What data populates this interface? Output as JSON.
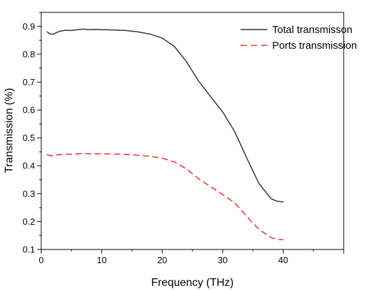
{
  "chart_data": {
    "type": "line",
    "title": "",
    "xlabel": "Frequency (THz)",
    "ylabel": "Transmission (%)",
    "xlim": [
      0,
      50
    ],
    "ylim": [
      0.1,
      0.95
    ],
    "xticks": [
      0,
      10,
      20,
      30,
      40
    ],
    "yticks": [
      0.1,
      0.2,
      0.3,
      0.4,
      0.5,
      0.6,
      0.7,
      0.8,
      0.9
    ],
    "xtick_labels": [
      "0",
      "10",
      "20",
      "30",
      "40"
    ],
    "ytick_labels": [
      "0.1",
      "0.2",
      "0.3",
      "0.4",
      "0.5",
      "0.6",
      "0.7",
      "0.8",
      "0.9"
    ],
    "grid": false,
    "legend_position": "top-right",
    "series": [
      {
        "name": "Total transmisson",
        "color": "#333333",
        "dash": "solid",
        "x": [
          1,
          1.5,
          2,
          3,
          4,
          5,
          6,
          7,
          8,
          9,
          10,
          12,
          14,
          16,
          18,
          20,
          22,
          24,
          26,
          28,
          30,
          32,
          34,
          36,
          38,
          39,
          40
        ],
        "y": [
          0.88,
          0.872,
          0.872,
          0.882,
          0.886,
          0.885,
          0.888,
          0.89,
          0.888,
          0.889,
          0.888,
          0.887,
          0.885,
          0.88,
          0.872,
          0.858,
          0.828,
          0.774,
          0.704,
          0.648,
          0.593,
          0.522,
          0.427,
          0.336,
          0.282,
          0.273,
          0.27
        ]
      },
      {
        "name": "Ports transmission",
        "color": "#e8302b",
        "dash": "dashed",
        "x": [
          1,
          1.5,
          2,
          3,
          4,
          5,
          6,
          7,
          8,
          10,
          12,
          14,
          16,
          18,
          20,
          22,
          24,
          26,
          28,
          30,
          32,
          34,
          36,
          38,
          39,
          40
        ],
        "y": [
          0.44,
          0.436,
          0.437,
          0.44,
          0.442,
          0.441,
          0.443,
          0.444,
          0.443,
          0.443,
          0.442,
          0.441,
          0.438,
          0.434,
          0.427,
          0.414,
          0.389,
          0.354,
          0.325,
          0.297,
          0.267,
          0.218,
          0.172,
          0.143,
          0.136,
          0.135
        ]
      }
    ]
  }
}
